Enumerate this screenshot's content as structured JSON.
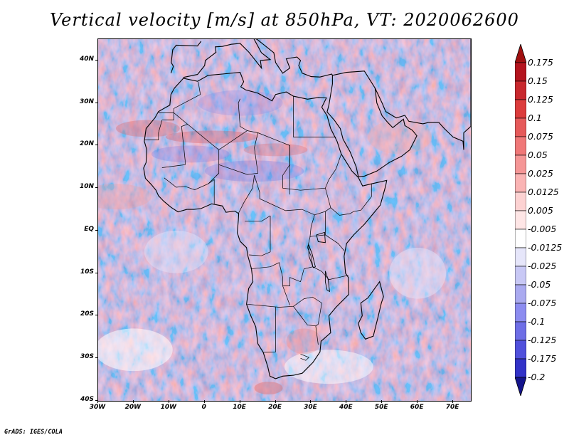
{
  "title": "Vertical velocity [m/s] at 850hPa, VT: 2020062600",
  "footer": "GrADS: IGES/COLA",
  "map": {
    "region": "Africa",
    "variable": "vertical velocity",
    "lon_range": [
      -30,
      75
    ],
    "lat_range": [
      -40,
      45
    ],
    "lat_ticks": [
      {
        "value": 40,
        "label": "40N"
      },
      {
        "value": 30,
        "label": "30N"
      },
      {
        "value": 20,
        "label": "20N"
      },
      {
        "value": 10,
        "label": "10N"
      },
      {
        "value": 0,
        "label": "EQ"
      },
      {
        "value": -10,
        "label": "10S"
      },
      {
        "value": -20,
        "label": "20S"
      },
      {
        "value": -30,
        "label": "30S"
      },
      {
        "value": -40,
        "label": "40S"
      }
    ],
    "lon_ticks": [
      {
        "value": -30,
        "label": "30W"
      },
      {
        "value": -20,
        "label": "20W"
      },
      {
        "value": -10,
        "label": "10W"
      },
      {
        "value": 0,
        "label": "0"
      },
      {
        "value": 10,
        "label": "10E"
      },
      {
        "value": 20,
        "label": "20E"
      },
      {
        "value": 30,
        "label": "30E"
      },
      {
        "value": 40,
        "label": "40E"
      },
      {
        "value": 50,
        "label": "50E"
      },
      {
        "value": 60,
        "label": "60E"
      },
      {
        "value": 70,
        "label": "70E"
      }
    ]
  },
  "colorbar": {
    "levels": [
      {
        "label": "0.175",
        "color": "#b4141e"
      },
      {
        "label": "0.15",
        "color": "#c8282d"
      },
      {
        "label": "0.125",
        "color": "#dc3c3c"
      },
      {
        "label": "0.1",
        "color": "#e65a5a"
      },
      {
        "label": "0.075",
        "color": "#f07878"
      },
      {
        "label": "0.05",
        "color": "#f59696"
      },
      {
        "label": "0.025",
        "color": "#fab4b4"
      },
      {
        "label": "0.0125",
        "color": "#fcd2d2"
      },
      {
        "label": "0.005",
        "color": "#fee6e6"
      },
      {
        "label": "-0.005",
        "color": "#ffffff"
      },
      {
        "label": "-0.0125",
        "color": "#e6e6fa"
      },
      {
        "label": "-0.025",
        "color": "#c8c8f5"
      },
      {
        "label": "-0.05",
        "color": "#aaaaf0"
      },
      {
        "label": "-0.075",
        "color": "#8c8cf0"
      },
      {
        "label": "-0.1",
        "color": "#6e6ee6"
      },
      {
        "label": "-0.125",
        "color": "#5050dc"
      },
      {
        "label": "-0.175",
        "color": "#3232c8"
      },
      {
        "label": "-0.2",
        "color": "#1e1eb4"
      }
    ],
    "top_color": "#a01010",
    "bottom_color": "#14148c"
  }
}
